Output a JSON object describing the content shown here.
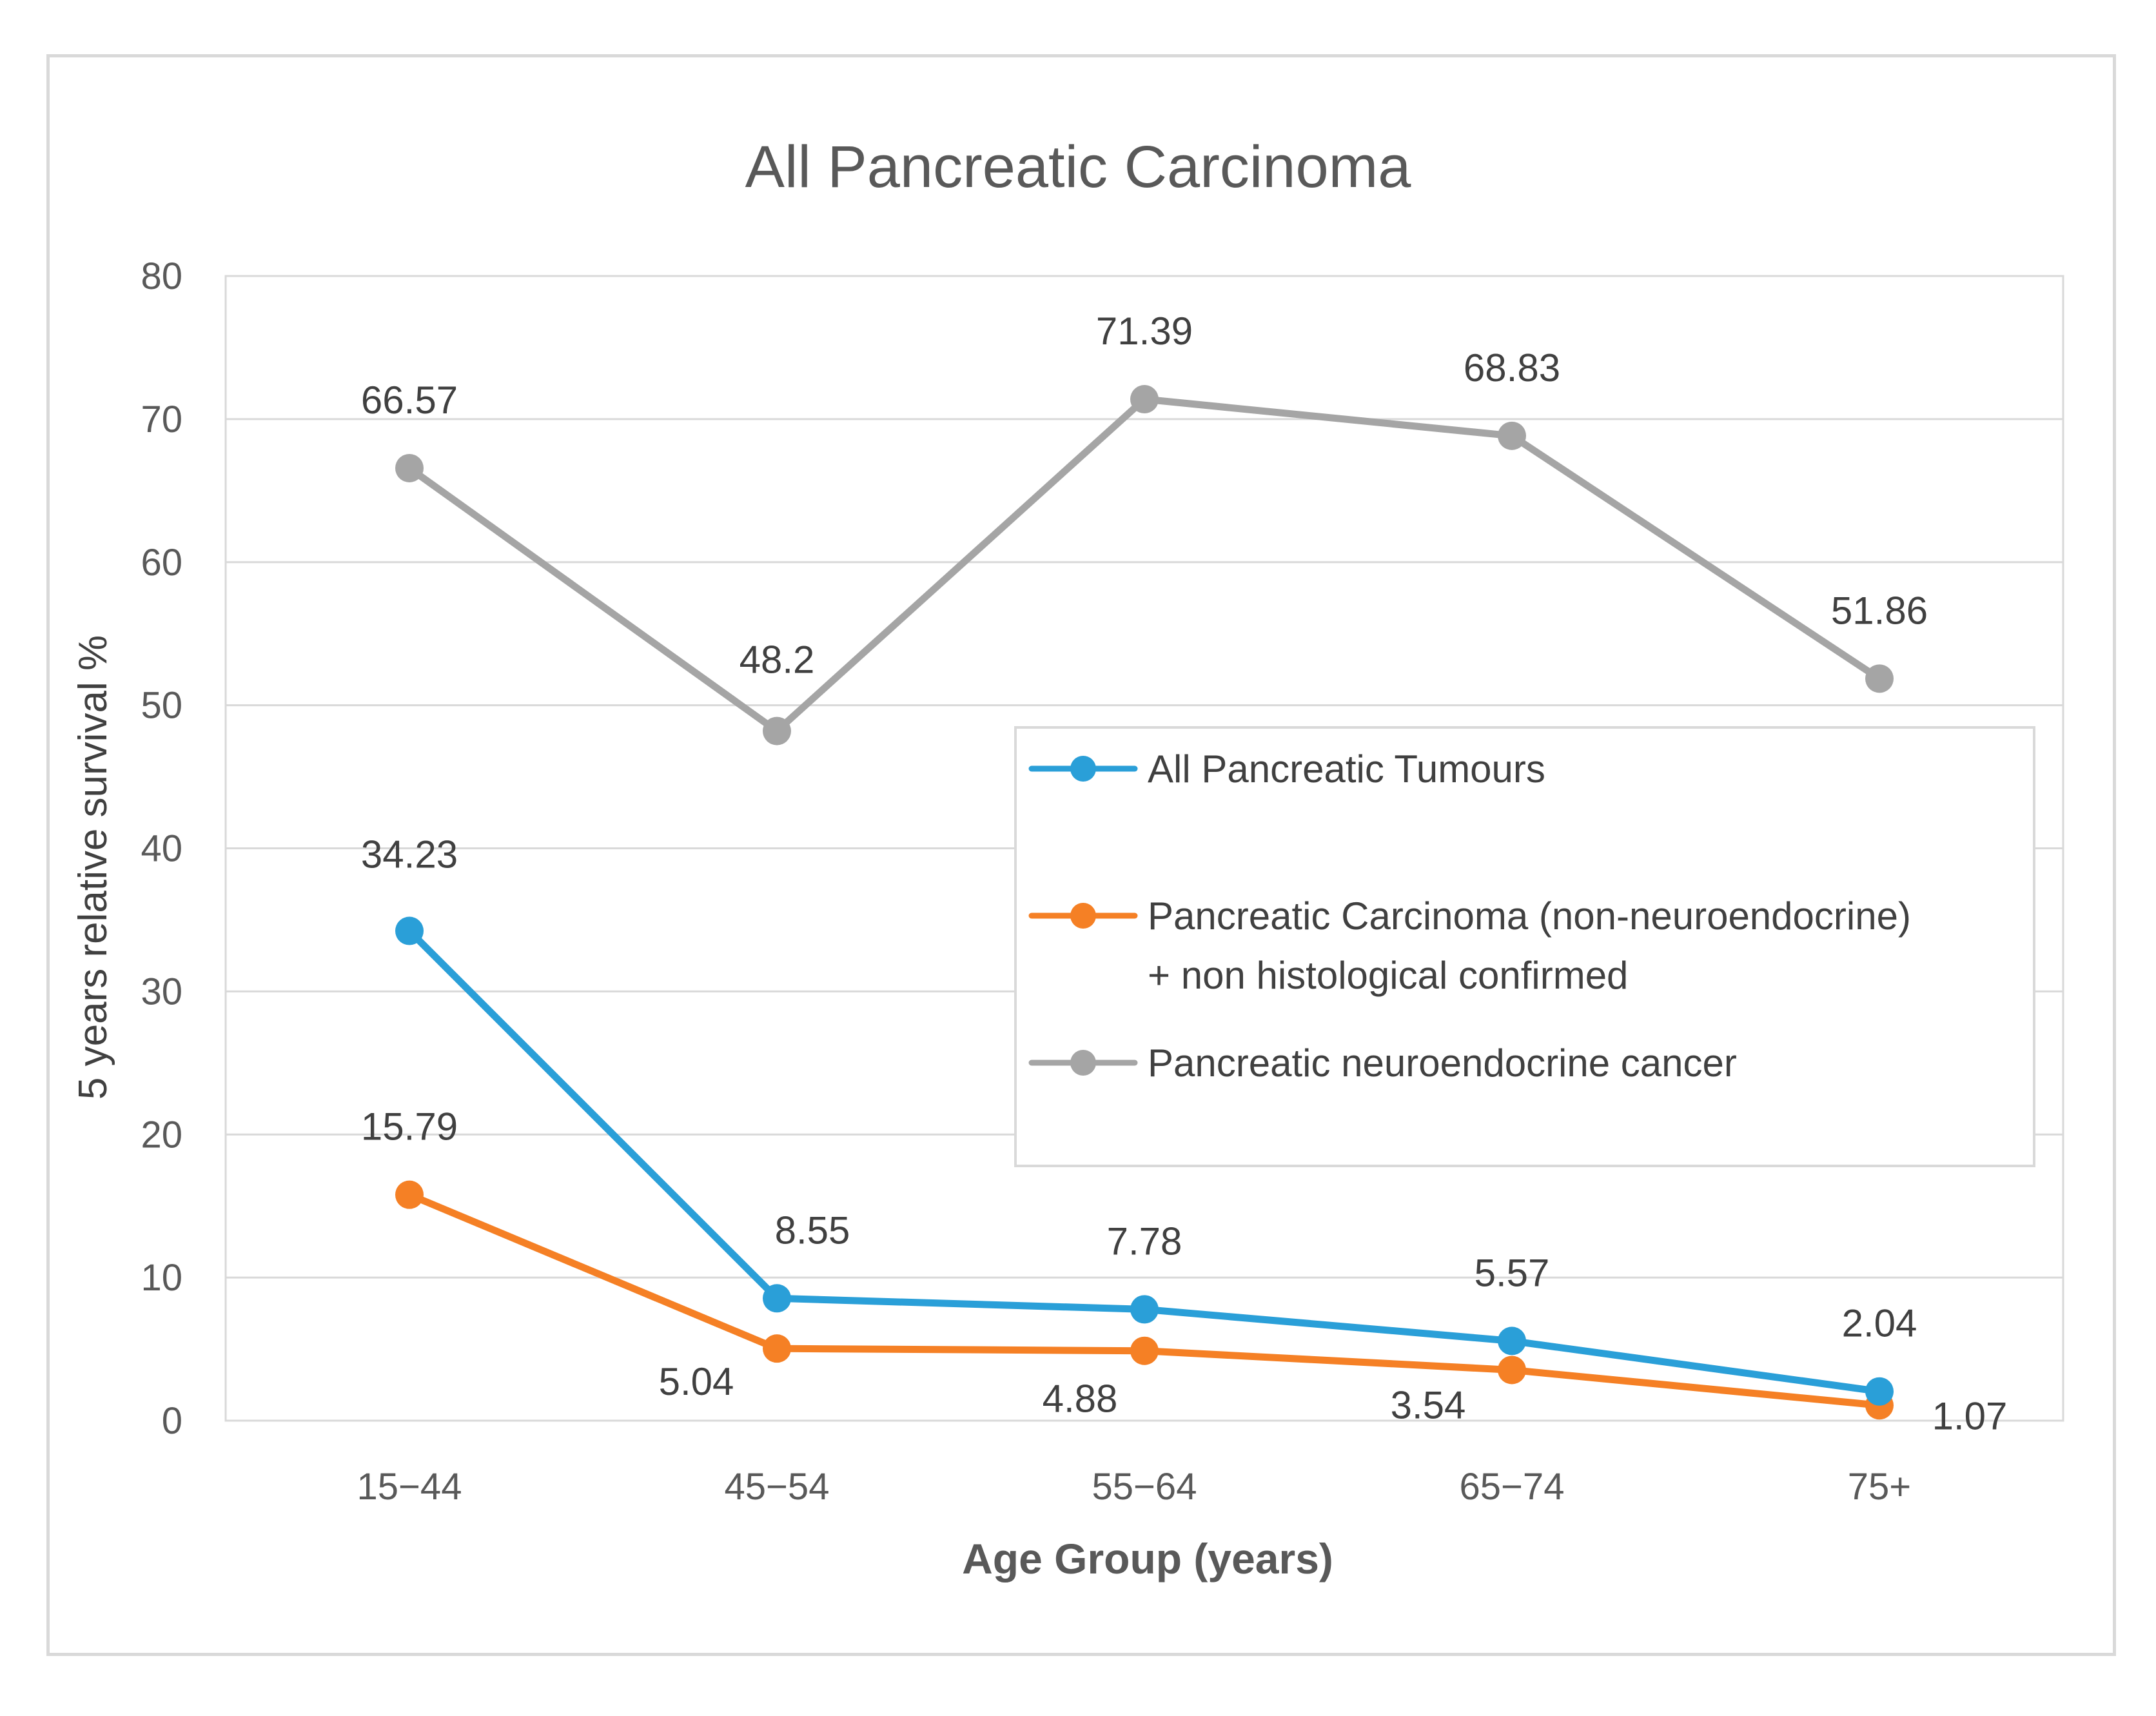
{
  "chart_data": {
    "type": "line",
    "title": "All Pancreatic Carcinoma",
    "xlabel": "Age Group (years)",
    "ylabel": "5 years relative survival %",
    "categories": [
      "15−44",
      "45−54",
      "55−64",
      "65−74",
      "75+"
    ],
    "ylim": [
      0,
      80
    ],
    "yticks": [
      0,
      10,
      20,
      30,
      40,
      50,
      60,
      70,
      80
    ],
    "grid": true,
    "legend_position": "right-middle",
    "series": [
      {
        "name": "All Pancreatic Tumours",
        "color": "#2a9fd8",
        "values": [
          34.23,
          8.55,
          7.78,
          5.57,
          2.04
        ],
        "labels": [
          "34.23",
          "8.55",
          "7.78",
          "5.57",
          "2.04"
        ]
      },
      {
        "name": "Pancreatic Carcinoma (non-neuroendocrine) + non histological confirmed",
        "legend_lines": [
          "Pancreatic Carcinoma (non-neuroendocrine)",
          "+ non histological confirmed"
        ],
        "color": "#f58025",
        "values": [
          15.79,
          5.04,
          4.88,
          3.54,
          1.07
        ],
        "labels": [
          "15.79",
          "5.04",
          "4.88",
          "3.54",
          "1.07"
        ]
      },
      {
        "name": "Pancreatic neuroendocrine cancer",
        "color": "#a5a5a5",
        "values": [
          66.57,
          48.2,
          71.39,
          68.83,
          51.86
        ],
        "labels": [
          "66.57",
          "48.2",
          "71.39",
          "68.83",
          "51.86"
        ]
      }
    ]
  },
  "style": {
    "grid_color": "#d9d9d9",
    "text_color": "#595959"
  }
}
